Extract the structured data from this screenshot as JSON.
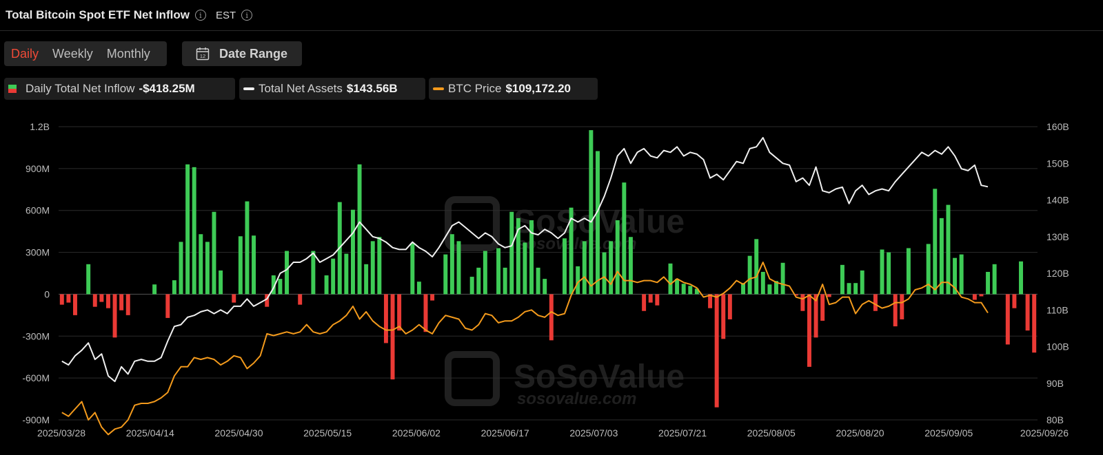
{
  "header": {
    "title": "Total Bitcoin Spot ETF Net Inflow",
    "timezone": "EST"
  },
  "tabs": [
    {
      "label": "Daily",
      "active": true
    },
    {
      "label": "Weekly",
      "active": false
    },
    {
      "label": "Monthly",
      "active": false
    }
  ],
  "date_range": {
    "label": "Date Range",
    "icon": "calendar-icon",
    "icon_text": "12"
  },
  "legend": {
    "inflow": {
      "label": "Daily Total Net Inflow",
      "value": "-$418.25M"
    },
    "assets": {
      "label": "Total Net Assets",
      "value": "$143.56B"
    },
    "price": {
      "label": "BTC Price",
      "value": "$109,172.20"
    }
  },
  "watermark": {
    "brand": "SoSoValue",
    "url": "sosovalue.com"
  },
  "colors": {
    "positive": "#3ecb56",
    "negative": "#ea3a35",
    "assets_line": "#f0f0f0",
    "price_line": "#f39a1c",
    "active_tab": "#ef4a37"
  },
  "chart_data": {
    "type": "bar",
    "x_tick_labels": [
      "2025/03/28",
      "2025/04/14",
      "2025/04/30",
      "2025/05/15",
      "2025/06/02",
      "2025/06/17",
      "2025/07/03",
      "2025/07/21",
      "2025/08/05",
      "2025/08/20",
      "2025/09/05",
      "2025/09/26"
    ],
    "y_left": {
      "ticks": [
        "1.2B",
        "900M",
        "600M",
        "300M",
        "0",
        "-300M",
        "-600M",
        "-900M"
      ],
      "range": [
        -900,
        1200
      ],
      "unit": "M"
    },
    "y_right": {
      "ticks": [
        "160B",
        "150B",
        "140B",
        "130B",
        "120B",
        "110B",
        "100B",
        "90B",
        "80B"
      ],
      "range": [
        80,
        160
      ],
      "unit": "B"
    },
    "grid": true,
    "inflow_values": [
      -75,
      -60,
      -150,
      0,
      215,
      -90,
      -55,
      -100,
      -310,
      -115,
      -150,
      0,
      0,
      0,
      70,
      0,
      -170,
      100,
      375,
      930,
      910,
      430,
      375,
      590,
      170,
      0,
      -60,
      415,
      665,
      420,
      0,
      -90,
      135,
      110,
      310,
      0,
      -75,
      0,
      310,
      0,
      135,
      255,
      660,
      290,
      605,
      930,
      215,
      380,
      410,
      -350,
      -610,
      -260,
      0,
      365,
      90,
      -270,
      -45,
      0,
      285,
      430,
      380,
      0,
      125,
      190,
      310,
      0,
      330,
      190,
      590,
      545,
      370,
      530,
      190,
      110,
      -330,
      0,
      400,
      620,
      200,
      380,
      1175,
      1025,
      300,
      380,
      530,
      800,
      410,
      0,
      -120,
      -60,
      -80,
      0,
      220,
      110,
      75,
      60,
      40,
      0,
      -100,
      -810,
      -320,
      -180,
      0,
      80,
      275,
      395,
      160,
      70,
      95,
      225,
      0,
      -10,
      -120,
      -520,
      -310,
      -190,
      -20,
      0,
      210,
      80,
      80,
      170,
      0,
      -120,
      320,
      300,
      -230,
      -180,
      330,
      0,
      0,
      360,
      755,
      545,
      640,
      260,
      285,
      0,
      -40,
      -15,
      160,
      215,
      0,
      -360,
      -100,
      235,
      -260,
      -418
    ],
    "total_net_assets_B": [
      96.0,
      95.0,
      97.5,
      99.0,
      101.0,
      96.5,
      98.0,
      92.0,
      90.5,
      94.5,
      92.5,
      96.0,
      96.5,
      96.0,
      96.0,
      97.0,
      101.5,
      105.5,
      106.0,
      108.0,
      108.5,
      109.5,
      110.0,
      109.0,
      110.0,
      109.0,
      111.0,
      111.0,
      113.0,
      111.0,
      112.0,
      113.0,
      116.0,
      120.0,
      121.0,
      123.0,
      123.0,
      124.0,
      125.5,
      123.0,
      124.0,
      125.0,
      127.0,
      129.0,
      131.0,
      134.0,
      132.0,
      130.0,
      129.5,
      128.5,
      127.0,
      126.5,
      126.5,
      128.5,
      127.0,
      126.0,
      124.5,
      127.0,
      130.0,
      133.0,
      134.0,
      132.5,
      131.0,
      129.5,
      131.0,
      130.0,
      128.0,
      127.0,
      127.5,
      132.0,
      133.0,
      131.0,
      130.5,
      132.0,
      131.0,
      129.5,
      131.0,
      135.0,
      134.0,
      135.0,
      134.0,
      137.0,
      141.0,
      146.0,
      152.0,
      154.0,
      150.0,
      153.0,
      154.0,
      152.0,
      151.5,
      153.5,
      153.0,
      154.5,
      152.0,
      153.0,
      152.5,
      151.0,
      146.0,
      147.0,
      145.5,
      148.0,
      150.5,
      150.0,
      154.0,
      154.5,
      157.0,
      153.0,
      151.5,
      150.0,
      149.5,
      145.0,
      146.0,
      144.0,
      149.0,
      142.5,
      142.0,
      143.0,
      143.5,
      139.0,
      142.5,
      144.0,
      141.5,
      142.5,
      143.0,
      142.5,
      145.0,
      147.0,
      149.0,
      151.0,
      153.0,
      152.0,
      153.5,
      152.5,
      154.5,
      152.0,
      148.5,
      148.0,
      149.5,
      144.0,
      143.6
    ],
    "btc_price_K": [
      82.0,
      81.0,
      83.0,
      85.0,
      80.0,
      82.0,
      78.0,
      76.0,
      77.5,
      78.0,
      80.0,
      84.0,
      84.5,
      84.5,
      85.0,
      86.0,
      87.5,
      92.0,
      94.5,
      94.5,
      97.0,
      96.5,
      97.0,
      96.5,
      95.0,
      96.0,
      97.5,
      97.0,
      94.0,
      95.5,
      97.5,
      103.5,
      103.0,
      103.5,
      104.0,
      103.5,
      104.0,
      106.0,
      104.0,
      103.5,
      104.0,
      106.0,
      107.0,
      108.5,
      111.0,
      107.5,
      109.5,
      107.0,
      105.5,
      104.5,
      104.5,
      105.5,
      103.5,
      104.5,
      106.0,
      104.5,
      103.5,
      106.5,
      108.5,
      108.0,
      107.5,
      105.0,
      104.5,
      106.0,
      109.0,
      108.5,
      106.5,
      107.0,
      107.0,
      108.0,
      109.5,
      110.0,
      108.5,
      108.0,
      109.5,
      108.5,
      109.0,
      114.0,
      117.5,
      119.0,
      116.5,
      118.0,
      119.0,
      117.0,
      120.5,
      118.0,
      118.0,
      117.5,
      118.0,
      118.0,
      117.5,
      119.0,
      117.0,
      118.5,
      117.5,
      117.0,
      116.0,
      113.5,
      114.0,
      113.5,
      114.5,
      116.0,
      118.0,
      117.0,
      118.5,
      119.0,
      123.0,
      118.5,
      117.5,
      117.0,
      116.5,
      113.5,
      113.0,
      114.0,
      112.5,
      117.0,
      111.5,
      112.0,
      113.5,
      113.5,
      109.0,
      111.5,
      112.5,
      111.5,
      110.5,
      111.0,
      112.0,
      112.0,
      113.0,
      115.5,
      116.0,
      117.0,
      115.5,
      117.5,
      117.5,
      116.0,
      113.5,
      113.0,
      112.0,
      112.0,
      109.2
    ]
  }
}
